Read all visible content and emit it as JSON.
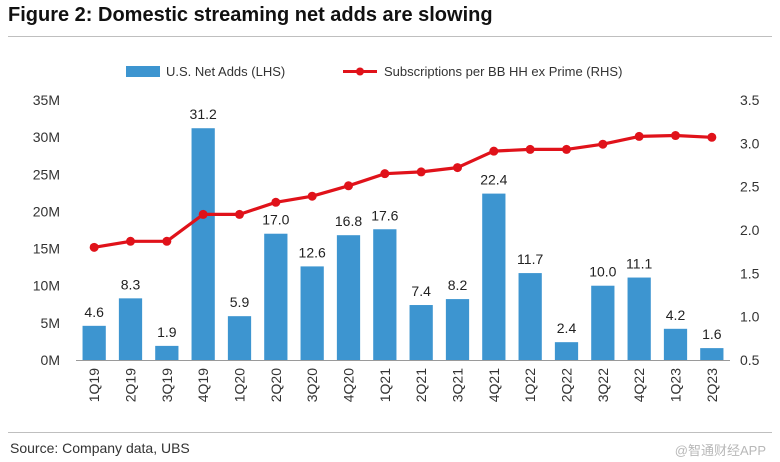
{
  "figure": {
    "title": "Figure 2: Domestic streaming net adds are slowing",
    "source": "Source: Company data, UBS",
    "watermark": "@智通财经APP"
  },
  "colors": {
    "bar": "#3d95d0",
    "line": "#e0121a",
    "text": "#222222"
  },
  "chart_data": {
    "type": "bar+line",
    "categories": [
      "1Q19",
      "2Q19",
      "3Q19",
      "4Q19",
      "1Q20",
      "2Q20",
      "3Q20",
      "4Q20",
      "1Q21",
      "2Q21",
      "3Q21",
      "4Q21",
      "1Q22",
      "2Q22",
      "3Q22",
      "4Q22",
      "1Q23",
      "2Q23"
    ],
    "series": [
      {
        "name": "U.S. Net Adds (LHS)",
        "type": "bar",
        "axis": "left",
        "values": [
          4.6,
          8.3,
          1.9,
          31.2,
          5.9,
          17.0,
          12.6,
          16.8,
          17.6,
          7.4,
          8.2,
          22.4,
          11.7,
          2.4,
          10.0,
          11.1,
          4.2,
          1.6
        ],
        "labels": [
          "4.6",
          "8.3",
          "1.9",
          "31.2",
          "5.9",
          "17.0",
          "12.6",
          "16.8",
          "17.6",
          "7.4",
          "8.2",
          "22.4",
          "11.7",
          "2.4",
          "10.0",
          "11.1",
          "4.2",
          "1.6"
        ]
      },
      {
        "name": "Subscriptions per BB HH ex Prime (RHS)",
        "type": "line",
        "axis": "right",
        "values": [
          1.8,
          1.87,
          1.87,
          2.18,
          2.18,
          2.32,
          2.39,
          2.51,
          2.65,
          2.67,
          2.72,
          2.91,
          2.93,
          2.93,
          2.99,
          3.08,
          3.09,
          3.07
        ]
      }
    ],
    "left_axis": {
      "ylim": [
        0,
        35
      ],
      "ticks": [
        0,
        5,
        10,
        15,
        20,
        25,
        30,
        35
      ],
      "tick_labels": [
        "0M",
        "5M",
        "10M",
        "15M",
        "20M",
        "25M",
        "30M",
        "35M"
      ]
    },
    "right_axis": {
      "ylim": [
        0.5,
        3.5
      ],
      "ticks": [
        0.5,
        1.0,
        1.5,
        2.0,
        2.5,
        3.0,
        3.5
      ],
      "tick_labels": [
        "0.5",
        "1.0",
        "1.5",
        "2.0",
        "2.5",
        "3.0",
        "3.5"
      ]
    },
    "legend_position": "top-center",
    "grid": false
  }
}
